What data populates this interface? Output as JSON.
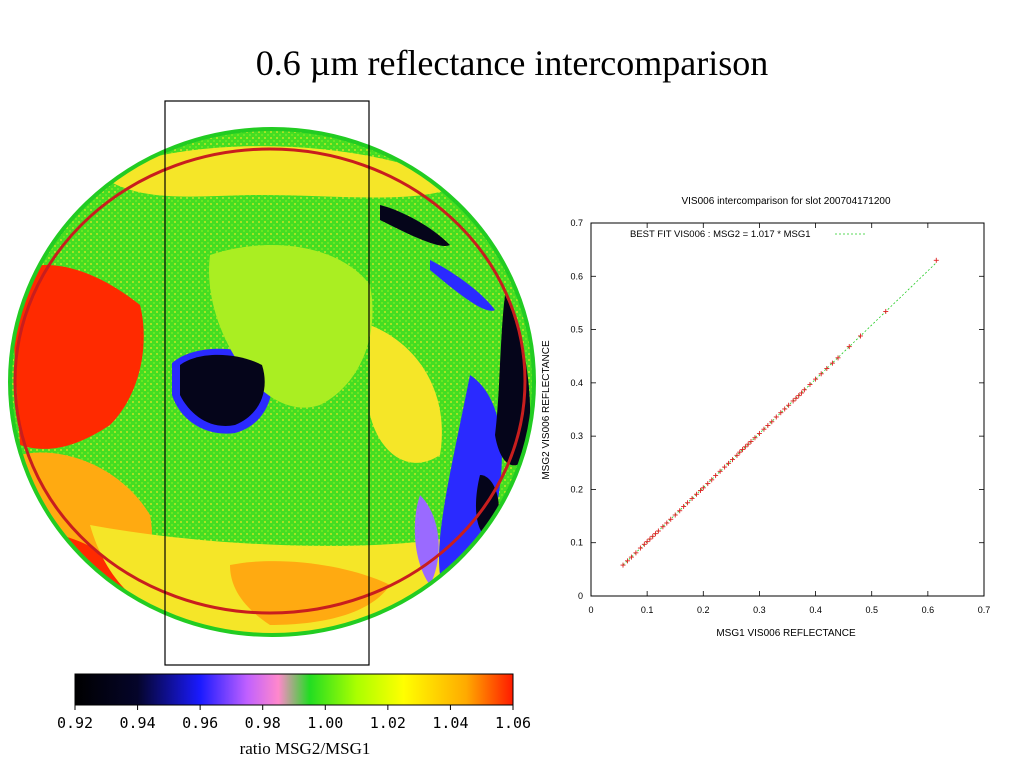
{
  "slide": {
    "title": "0.6 µm reflectance intercomparison"
  },
  "colorbar": {
    "label": "ratio MSG2/MSG1",
    "min": 0.92,
    "max": 1.06,
    "ticks": [
      "0.92",
      "0.94",
      "0.96",
      "0.98",
      "1.00",
      "1.02",
      "1.04",
      "1.06"
    ],
    "stops": [
      {
        "at": 0.92,
        "color": "#000000"
      },
      {
        "at": 0.94,
        "color": "#05052a"
      },
      {
        "at": 0.96,
        "color": "#1a1aff"
      },
      {
        "at": 0.975,
        "color": "#c060ff"
      },
      {
        "at": 0.985,
        "color": "#ff88cc"
      },
      {
        "at": 0.995,
        "color": "#22dd22"
      },
      {
        "at": 1.01,
        "color": "#aaff00"
      },
      {
        "at": 1.025,
        "color": "#ffff00"
      },
      {
        "at": 1.045,
        "color": "#ffaa00"
      },
      {
        "at": 1.06,
        "color": "#ff1a00"
      }
    ]
  },
  "map": {
    "colors": {
      "green": "#44dd22",
      "lime": "#aaee22",
      "yellow": "#f5e628",
      "orange": "#ffaa11",
      "red": "#ff2a00",
      "blue": "#2a2aff",
      "black": "#05051a",
      "purple": "#9a6aff",
      "ring": "#c81e1e"
    }
  },
  "chart_data": {
    "type": "scatter",
    "title": "VIS006 intercomparison for slot 200704171200",
    "xlabel": "MSG1 VIS006 REFLECTANCE",
    "ylabel": "MSG2 VIS006 REFLECTANCE",
    "xlim": [
      0,
      0.7
    ],
    "ylim": [
      0,
      0.7
    ],
    "xticks": [
      "0",
      "0.1",
      "0.2",
      "0.3",
      "0.4",
      "0.5",
      "0.6",
      "0.7"
    ],
    "yticks": [
      "0",
      "0.1",
      "0.2",
      "0.3",
      "0.4",
      "0.5",
      "0.6",
      "0.7"
    ],
    "legend": "top-left",
    "fit": {
      "label": "BEST FIT VIS006  : MSG2 = 1.017 * MSG1",
      "slope": 1.017,
      "color": "#22cc22"
    },
    "points_color": "#dd2222",
    "x": [
      0.057,
      0.065,
      0.072,
      0.08,
      0.088,
      0.095,
      0.1,
      0.105,
      0.11,
      0.115,
      0.12,
      0.128,
      0.135,
      0.142,
      0.15,
      0.158,
      0.165,
      0.172,
      0.18,
      0.188,
      0.195,
      0.2,
      0.208,
      0.215,
      0.222,
      0.23,
      0.238,
      0.245,
      0.252,
      0.26,
      0.265,
      0.27,
      0.275,
      0.28,
      0.285,
      0.292,
      0.3,
      0.308,
      0.315,
      0.322,
      0.33,
      0.338,
      0.345,
      0.352,
      0.36,
      0.365,
      0.37,
      0.375,
      0.38,
      0.39,
      0.4,
      0.41,
      0.42,
      0.43,
      0.44,
      0.46,
      0.48,
      0.525,
      0.615
    ],
    "y": [
      0.058,
      0.066,
      0.073,
      0.081,
      0.09,
      0.097,
      0.102,
      0.107,
      0.112,
      0.117,
      0.122,
      0.13,
      0.137,
      0.144,
      0.152,
      0.16,
      0.168,
      0.175,
      0.183,
      0.191,
      0.198,
      0.203,
      0.211,
      0.218,
      0.226,
      0.234,
      0.242,
      0.249,
      0.256,
      0.264,
      0.27,
      0.275,
      0.28,
      0.285,
      0.29,
      0.297,
      0.305,
      0.313,
      0.32,
      0.327,
      0.336,
      0.344,
      0.351,
      0.358,
      0.366,
      0.371,
      0.376,
      0.381,
      0.387,
      0.397,
      0.407,
      0.417,
      0.427,
      0.437,
      0.447,
      0.468,
      0.488,
      0.534,
      0.63
    ]
  }
}
